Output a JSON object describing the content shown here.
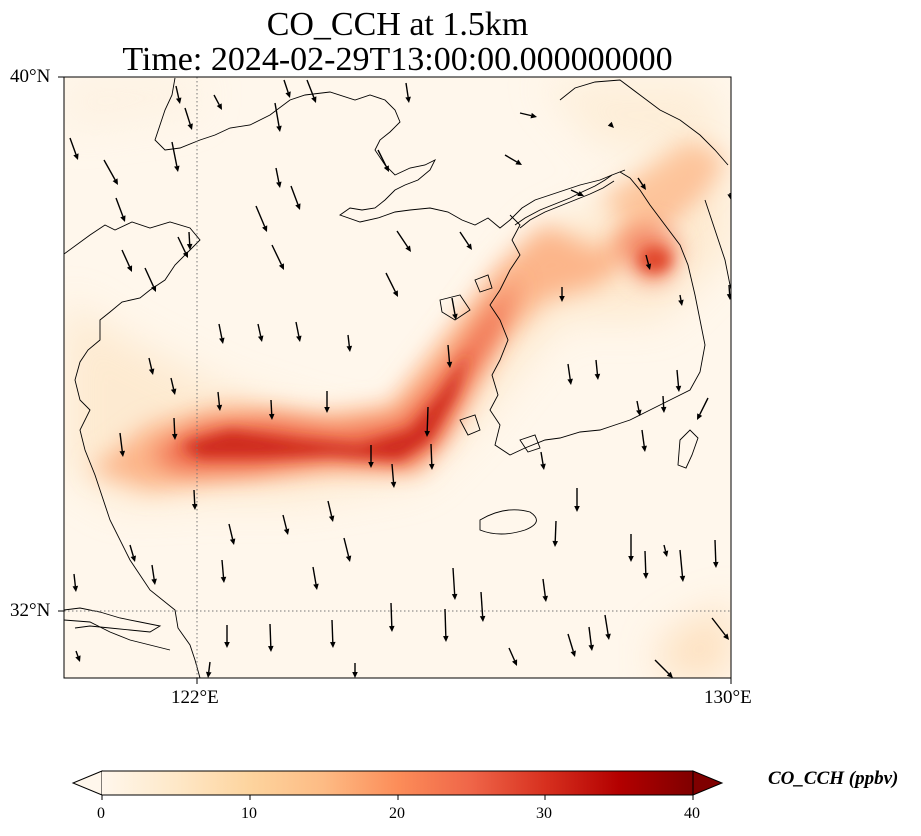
{
  "title": {
    "line1": "CO_CCH at 1.5km",
    "line2": "Time: 2024-02-29T13:00:00.000000000"
  },
  "axes": {
    "lat_ticks": [
      "40°N",
      "32°N"
    ],
    "lon_ticks": [
      "122°E",
      "130°E"
    ],
    "lat_range": [
      31,
      40
    ],
    "lon_range": [
      120,
      130
    ],
    "gridlines": "dotted"
  },
  "colorbar": {
    "label": "CO_CCH (ppbv)",
    "ticks": [
      "0",
      "10",
      "20",
      "30",
      "40"
    ],
    "range": [
      0,
      40
    ],
    "colormap": "OrRd",
    "extend": "both",
    "colors": [
      "#fff7ec",
      "#fee8c8",
      "#fdd49e",
      "#fdbb84",
      "#fc8d59",
      "#ef6548",
      "#d7301f",
      "#b30000",
      "#7f0000"
    ]
  },
  "map": {
    "background": "#fff7ec",
    "plume_color": "#c8281a",
    "coastline_color": "#000000",
    "overlays": [
      "coastlines",
      "wind-vectors"
    ]
  }
}
